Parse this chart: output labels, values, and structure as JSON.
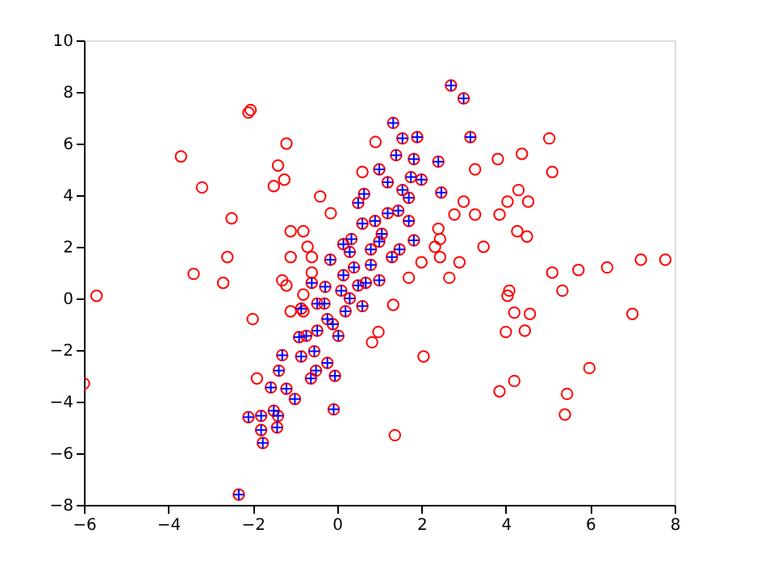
{
  "chart_data": {
    "type": "scatter",
    "xlim": [
      -6,
      8
    ],
    "ylim": [
      -8,
      10
    ],
    "xticks": [
      -6,
      -4,
      -2,
      0,
      2,
      4,
      6,
      8
    ],
    "yticks": [
      -8,
      -6,
      -4,
      -2,
      0,
      2,
      4,
      6,
      8,
      10
    ],
    "grid": false,
    "series": [
      {
        "color": "#ff0000",
        "marker": "circle",
        "x": [
          -5.7,
          -6.0,
          -3.7,
          -3.2,
          -2.1,
          -2.05,
          -2.5,
          -2.6,
          -3.4,
          -2.7,
          -2.0,
          -1.9,
          -1.2,
          -1.4,
          -1.25,
          -1.5,
          -1.1,
          -0.8,
          -0.4,
          -0.15,
          -0.7,
          -0.6,
          -1.1,
          -0.6,
          -1.3,
          -1.2,
          -0.8,
          -1.1,
          -0.8,
          0.91,
          5.03,
          3.81,
          4.38,
          3.27,
          5.1,
          4.3,
          4.04,
          4.53,
          3.0,
          2.78,
          3.27,
          3.85,
          4.27,
          4.5,
          2.4,
          2.44,
          2.32,
          3.47,
          2.9,
          0.6,
          2.0,
          7.78,
          7.2,
          6.4,
          5.72,
          5.1,
          5.34,
          4.08,
          4.04,
          4.2,
          4.57,
          7.0,
          4.0,
          4.45,
          5.98,
          4.2,
          3.85,
          5.45,
          5.4,
          1.37,
          2.05,
          0.98,
          0.83,
          1.33,
          1.7,
          2.66,
          2.44,
          2.7,
          3.0,
          1.33,
          1.55,
          1.9,
          3.16,
          1.4,
          1.82,
          2.4,
          1.0,
          1.75,
          2.0,
          1.2,
          2.47,
          0.64,
          1.55,
          1.7,
          1.45,
          1.7,
          0.6,
          1.06,
          1.82,
          1.48,
          0.8,
          0.5,
          0.15,
          0.34,
          -0.16,
          -2.33,
          -1.76,
          -1.8,
          -2.1,
          -1.8,
          -1.42,
          -1.4,
          -1.5,
          -0.08,
          -1.57,
          -1.2,
          -1.0,
          -1.3,
          -0.85,
          -1.38,
          -0.62,
          -0.05,
          -0.85,
          -0.73,
          -0.47,
          0.03,
          -0.23,
          -0.54,
          -0.23,
          -0.47,
          -0.28,
          -0.6,
          0.15,
          0.68,
          0.3,
          0.2,
          0.5,
          0.1,
          -0.3,
          0.4,
          0.8,
          1.0,
          0.3,
          -0.1,
          0.6,
          1.0,
          1.3,
          -0.9,
          -0.5,
          1.2,
          0.9
        ],
        "values": [
          0.1,
          -3.3,
          5.5,
          4.3,
          7.2,
          7.3,
          3.1,
          1.6,
          0.95,
          0.6,
          -0.8,
          -3.1,
          6.0,
          5.15,
          4.6,
          4.35,
          2.6,
          2.6,
          3.95,
          3.3,
          2.0,
          1.6,
          1.6,
          1.0,
          0.7,
          0.5,
          -0.5,
          -0.5,
          0.15,
          6.06,
          6.2,
          5.4,
          5.6,
          5.0,
          4.9,
          4.2,
          3.75,
          3.75,
          3.75,
          3.25,
          3.25,
          3.25,
          2.6,
          2.4,
          2.7,
          2.3,
          2.0,
          2.0,
          1.4,
          4.9,
          1.4,
          1.5,
          1.5,
          1.2,
          1.1,
          1.0,
          0.3,
          0.3,
          0.1,
          -0.55,
          -0.6,
          -0.6,
          -1.3,
          -1.25,
          -2.7,
          -3.2,
          -3.6,
          -3.7,
          -4.5,
          -5.3,
          -2.25,
          -1.3,
          -1.7,
          -0.25,
          0.8,
          0.8,
          1.6,
          8.25,
          7.75,
          6.8,
          6.2,
          6.25,
          6.25,
          5.55,
          5.4,
          5.3,
          5.0,
          4.7,
          4.6,
          4.5,
          4.1,
          4.05,
          4.2,
          3.9,
          3.4,
          3.0,
          2.9,
          2.5,
          2.25,
          1.9,
          1.9,
          3.7,
          2.1,
          2.3,
          1.5,
          -7.6,
          -5.6,
          -5.1,
          -4.6,
          -4.55,
          -5.0,
          -4.55,
          -4.35,
          -4.3,
          -3.45,
          -3.5,
          -3.9,
          -2.2,
          -2.25,
          -2.8,
          -3.1,
          -3.0,
          -0.4,
          -1.45,
          -1.25,
          -1.45,
          -0.8,
          -2.05,
          -2.5,
          -0.2,
          0.45,
          0.6,
          0.9,
          0.6,
          0.0,
          -0.5,
          0.5,
          0.3,
          -0.2,
          1.2,
          1.3,
          2.2,
          1.8,
          -1.0,
          -0.3,
          0.7,
          1.6,
          -1.5,
          -2.8,
          3.3,
          3.0
        ]
      },
      {
        "color": "#0000ff",
        "marker": "cross",
        "x": [
          2.7,
          3.0,
          1.33,
          1.55,
          1.9,
          3.16,
          1.4,
          1.82,
          2.4,
          1.0,
          1.75,
          2.0,
          1.2,
          2.47,
          0.64,
          1.55,
          1.7,
          1.45,
          1.7,
          0.6,
          1.06,
          1.82,
          1.48,
          0.8,
          0.5,
          0.15,
          0.34,
          -0.16,
          -2.33,
          -1.76,
          -1.8,
          -2.1,
          -1.8,
          -1.42,
          -1.4,
          -1.5,
          -0.08,
          -1.57,
          -1.2,
          -1.0,
          -1.3,
          -0.85,
          -1.38,
          -0.62,
          -0.05,
          -0.85,
          -0.73,
          -0.47,
          0.03,
          -0.23,
          -0.54,
          -0.23,
          -0.47,
          -0.28,
          -0.6,
          0.15,
          0.68,
          0.3,
          0.2,
          0.5,
          0.1,
          -0.3,
          0.4,
          0.8,
          1.0,
          0.3,
          -0.1,
          0.6,
          1.0,
          1.3,
          -0.9,
          -0.5,
          1.2,
          0.9
        ],
        "values": [
          8.25,
          7.75,
          6.8,
          6.2,
          6.25,
          6.25,
          5.55,
          5.4,
          5.3,
          5.0,
          4.7,
          4.6,
          4.5,
          4.1,
          4.05,
          4.2,
          3.9,
          3.4,
          3.0,
          2.9,
          2.5,
          2.25,
          1.9,
          1.9,
          3.7,
          2.1,
          2.3,
          1.5,
          -7.6,
          -5.6,
          -5.1,
          -4.6,
          -4.55,
          -5.0,
          -4.55,
          -4.35,
          -4.3,
          -3.45,
          -3.5,
          -3.9,
          -2.2,
          -2.25,
          -2.8,
          -3.1,
          -3.0,
          -0.4,
          -1.45,
          -1.25,
          -1.45,
          -0.8,
          -2.05,
          -2.5,
          -0.2,
          0.45,
          0.6,
          0.9,
          0.6,
          0.0,
          -0.5,
          0.5,
          0.3,
          -0.2,
          1.2,
          1.3,
          2.2,
          1.8,
          -1.0,
          -0.3,
          0.7,
          1.6,
          -1.5,
          -2.8,
          3.3,
          3.0
        ]
      }
    ]
  }
}
